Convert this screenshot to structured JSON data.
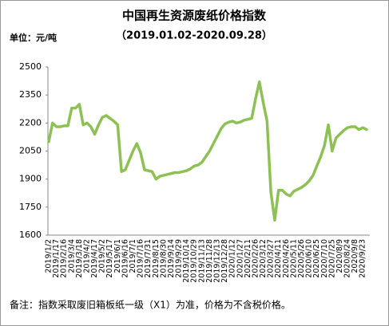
{
  "chart_data": {
    "type": "line",
    "title": "中国再生资源废纸价格指数",
    "subtitle": "（2019.01.02-2020.09.28）",
    "unit_label": "单位：元/吨",
    "note": "备注：指数采取废旧箱板纸一级（X1）为准，价格为不含税价格。",
    "categories": [
      "2019/1/2",
      null,
      "2019/1/17",
      null,
      "2019/2/16",
      null,
      "2019/3/4",
      null,
      "2019/3/18",
      null,
      "2019/4/2",
      null,
      "2019/4/17",
      null,
      "2019/5/2",
      null,
      "2019/5/17",
      null,
      "2019/6/1",
      null,
      "2019/6/16",
      null,
      "2019/7/1",
      null,
      "2019/7/16",
      null,
      "2019/7/31",
      null,
      "2019/8/15",
      null,
      "2019/8/30",
      null,
      "2019/9/14",
      null,
      "2019/9/29",
      null,
      "2019/10/14",
      null,
      "2019/10/29",
      null,
      "2019/11/13",
      null,
      "2019/11/28",
      null,
      "2019/12/13",
      null,
      "2019/12/28",
      null,
      "2020/1/12",
      null,
      "2020/1/27",
      null,
      "2020/2/11",
      null,
      "2020/2/26",
      null,
      "2020/3/12",
      null,
      "2020/3/27",
      null,
      "2020/4/11",
      null,
      "2020/4/26",
      null,
      "2020/5/11",
      null,
      "2020/5/26",
      null,
      "2020/6/10",
      null,
      "2020/6/25",
      null,
      "2020/7/10",
      null,
      "2020/7/25",
      null,
      "2020/8/9",
      null,
      "2020/8/24",
      null,
      "2020/9/8",
      null,
      "2020/9/23",
      null
    ],
    "values": [
      2100,
      2200,
      2180,
      2180,
      2185,
      2185,
      2280,
      2280,
      2300,
      2190,
      2200,
      2180,
      2140,
      2190,
      2230,
      2240,
      2225,
      2210,
      2190,
      1940,
      1950,
      2000,
      2050,
      2090,
      2040,
      1950,
      1945,
      1940,
      1900,
      1915,
      1920,
      1925,
      1930,
      1935,
      1935,
      1940,
      1945,
      1955,
      1970,
      1975,
      1990,
      2020,
      2050,
      2090,
      2130,
      2170,
      2195,
      2205,
      2210,
      2200,
      2205,
      2215,
      2220,
      2225,
      2330,
      2420,
      2310,
      2210,
      1830,
      1680,
      1840,
      1840,
      1820,
      1810,
      1835,
      1845,
      1855,
      1870,
      1890,
      1920,
      1970,
      2020,
      2080,
      2190,
      2050,
      2120,
      2140,
      2160,
      2175,
      2180,
      2180,
      2165,
      2175,
      2165
    ],
    "color": "#8dc153",
    "ylim": [
      1600,
      2500
    ],
    "yticks": [
      1600,
      1750,
      1900,
      2050,
      2200,
      2350,
      2500
    ],
    "grid": false
  }
}
